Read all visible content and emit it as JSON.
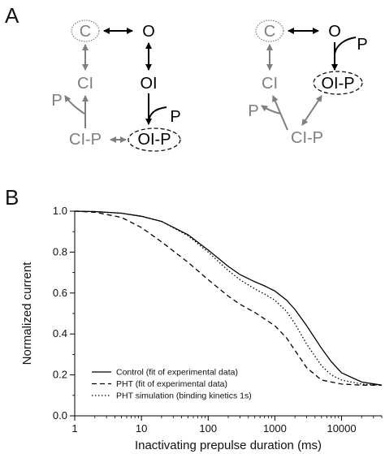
{
  "panels": {
    "a": "A",
    "b": "B"
  },
  "scheme_left": {
    "c": "C",
    "o": "O",
    "ci": "CI",
    "oi": "OI",
    "p_top": "P",
    "p_side": "P",
    "ci_p": "CI-P",
    "oi_p": "OI-P"
  },
  "scheme_right": {
    "c": "C",
    "o": "O",
    "p_top": "P",
    "ci": "CI",
    "oi_p": "OI-P",
    "p_side": "P",
    "ci_p": "CI-P"
  },
  "colors": {
    "dark": "#000000",
    "gray": "#7f7f7f"
  },
  "chart_data": {
    "type": "line",
    "xlabel": "Inactivating prepulse duration (ms)",
    "ylabel": "Normalized current",
    "x_scale": "log",
    "xlim": [
      1,
      40000
    ],
    "ylim": [
      0.0,
      1.0
    ],
    "x_ticks": [
      "1",
      "10",
      "100",
      "1000",
      "10000"
    ],
    "y_ticks": [
      "0.0",
      "0.2",
      "0.4",
      "0.6",
      "0.8",
      "1.0"
    ],
    "grid": false,
    "legend_position": "bottom-left",
    "series": [
      {
        "name": "Control (fit of experimental data)",
        "style": "solid",
        "x": [
          1,
          2,
          5,
          10,
          20,
          50,
          100,
          200,
          300,
          500,
          700,
          1000,
          1500,
          2000,
          3000,
          5000,
          7000,
          10000,
          20000,
          40000
        ],
        "y": [
          1.0,
          0.998,
          0.99,
          0.975,
          0.95,
          0.885,
          0.81,
          0.73,
          0.69,
          0.655,
          0.635,
          0.61,
          0.565,
          0.52,
          0.44,
          0.33,
          0.265,
          0.21,
          0.165,
          0.15
        ]
      },
      {
        "name": "PHT (fit of experimental data)",
        "style": "dashed",
        "x": [
          1,
          2,
          5,
          10,
          20,
          50,
          100,
          200,
          300,
          500,
          1000,
          1500,
          2000,
          3000,
          5000,
          10000,
          20000,
          40000
        ],
        "y": [
          1.0,
          0.995,
          0.97,
          0.92,
          0.85,
          0.75,
          0.665,
          0.585,
          0.545,
          0.505,
          0.44,
          0.38,
          0.32,
          0.235,
          0.175,
          0.155,
          0.15,
          0.15
        ]
      },
      {
        "name": "PHT simulation (binding kinetics 1s)",
        "style": "dotted",
        "x": [
          1,
          2,
          5,
          10,
          20,
          50,
          100,
          200,
          300,
          500,
          700,
          1000,
          1500,
          2000,
          3000,
          5000,
          7000,
          10000,
          20000,
          40000
        ],
        "y": [
          1.0,
          0.998,
          0.99,
          0.975,
          0.95,
          0.88,
          0.8,
          0.71,
          0.665,
          0.62,
          0.595,
          0.565,
          0.51,
          0.45,
          0.35,
          0.245,
          0.2,
          0.175,
          0.155,
          0.15
        ]
      }
    ]
  }
}
